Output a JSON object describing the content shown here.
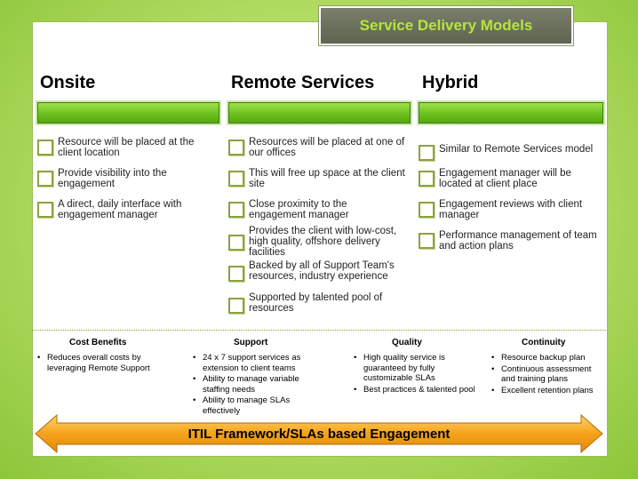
{
  "title": "Service Delivery Models",
  "columns": [
    {
      "heading": "Onsite",
      "items": [
        "Resource will be placed at the client location",
        "Provide visibility into the engagement",
        "A direct, daily interface with engagement manager"
      ]
    },
    {
      "heading": "Remote Services",
      "items": [
        "Resources will be placed at one of our offices",
        "This will free up space at the client site",
        "Close proximity to the engagement manager",
        "Provides the client with low-cost, high quality, offshore delivery facilities",
        "Backed by all of Support Team's resources, industry experience",
        "Supported by talented pool of resources"
      ]
    },
    {
      "heading": "Hybrid",
      "items": [
        "Similar to Remote Services model",
        "Engagement manager will be located at client place",
        "Engagement reviews with client manager",
        "Performance management of team and action plans"
      ]
    }
  ],
  "benefits": [
    {
      "heading": "Cost Benefits",
      "bullets": [
        "Reduces overall costs by leveraging Remote Support"
      ]
    },
    {
      "heading": "Support",
      "bullets": [
        "24 x 7 support services as extension to client teams",
        "Ability to manage variable staffing needs",
        "Ability to manage SLAs effectively"
      ]
    },
    {
      "heading": "Quality",
      "bullets": [
        "High quality service is guaranteed by fully customizable SLAs",
        "Best practices & talented pool"
      ]
    },
    {
      "heading": "Continuity",
      "bullets": [
        "Resource backup plan",
        "Continuous  assessment and training plans",
        "Excellent retention plans"
      ]
    }
  ],
  "banner": "ITIL Framework/SLAs based Engagement",
  "colors": {
    "accent_green": "#7cc828",
    "title_text": "#b7e53a",
    "arrow_orange": "#f5a21b"
  }
}
